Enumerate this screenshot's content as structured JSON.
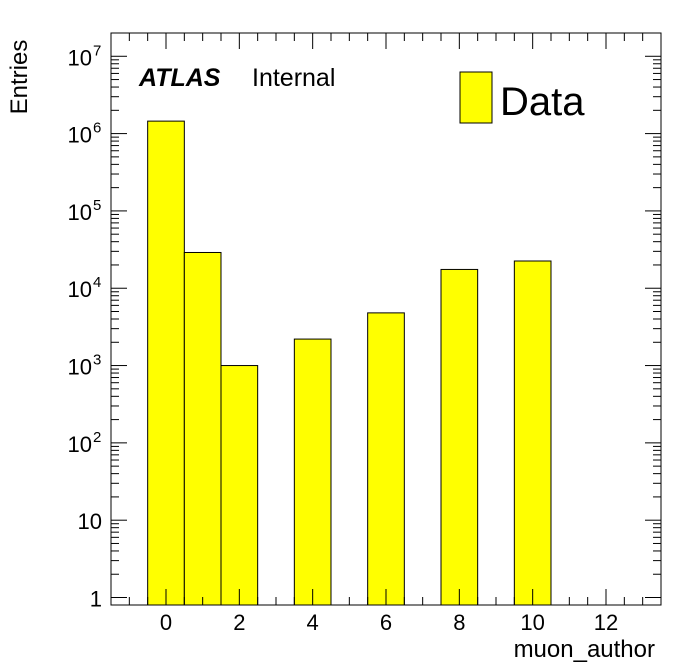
{
  "chart_data": {
    "type": "bar",
    "x": [
      0,
      1,
      2,
      4,
      6,
      8,
      10
    ],
    "values": [
      1450000,
      29000,
      1000,
      2200,
      4800,
      17500,
      22500
    ],
    "bin_width": 1,
    "xlim": [
      -1.5,
      13.5
    ],
    "ylim": [
      0.8,
      20000000
    ],
    "yscale": "log",
    "xlabel": "muon_author",
    "ylabel": "Entries",
    "x_ticks": [
      0,
      2,
      4,
      6,
      8,
      10,
      12
    ],
    "x_tick_labels": [
      "0",
      "2",
      "4",
      "6",
      "8",
      "10",
      "12"
    ],
    "y_ticks": [
      {
        "value": 1,
        "label": "1",
        "sup": ""
      },
      {
        "value": 10,
        "label": "10",
        "sup": ""
      },
      {
        "value": 100,
        "label": "10",
        "sup": "2"
      },
      {
        "value": 1000,
        "label": "10",
        "sup": "3"
      },
      {
        "value": 10000,
        "label": "10",
        "sup": "4"
      },
      {
        "value": 100000,
        "label": "10",
        "sup": "5"
      },
      {
        "value": 1000000,
        "label": "10",
        "sup": "6"
      },
      {
        "value": 10000000,
        "label": "10",
        "sup": "7"
      }
    ],
    "series": [
      {
        "name": "Data",
        "color": "#ffff00"
      }
    ],
    "annotation": {
      "word": "ATLAS",
      "status": "Internal"
    },
    "legend": {
      "label": "Data",
      "position": "top-right"
    }
  }
}
